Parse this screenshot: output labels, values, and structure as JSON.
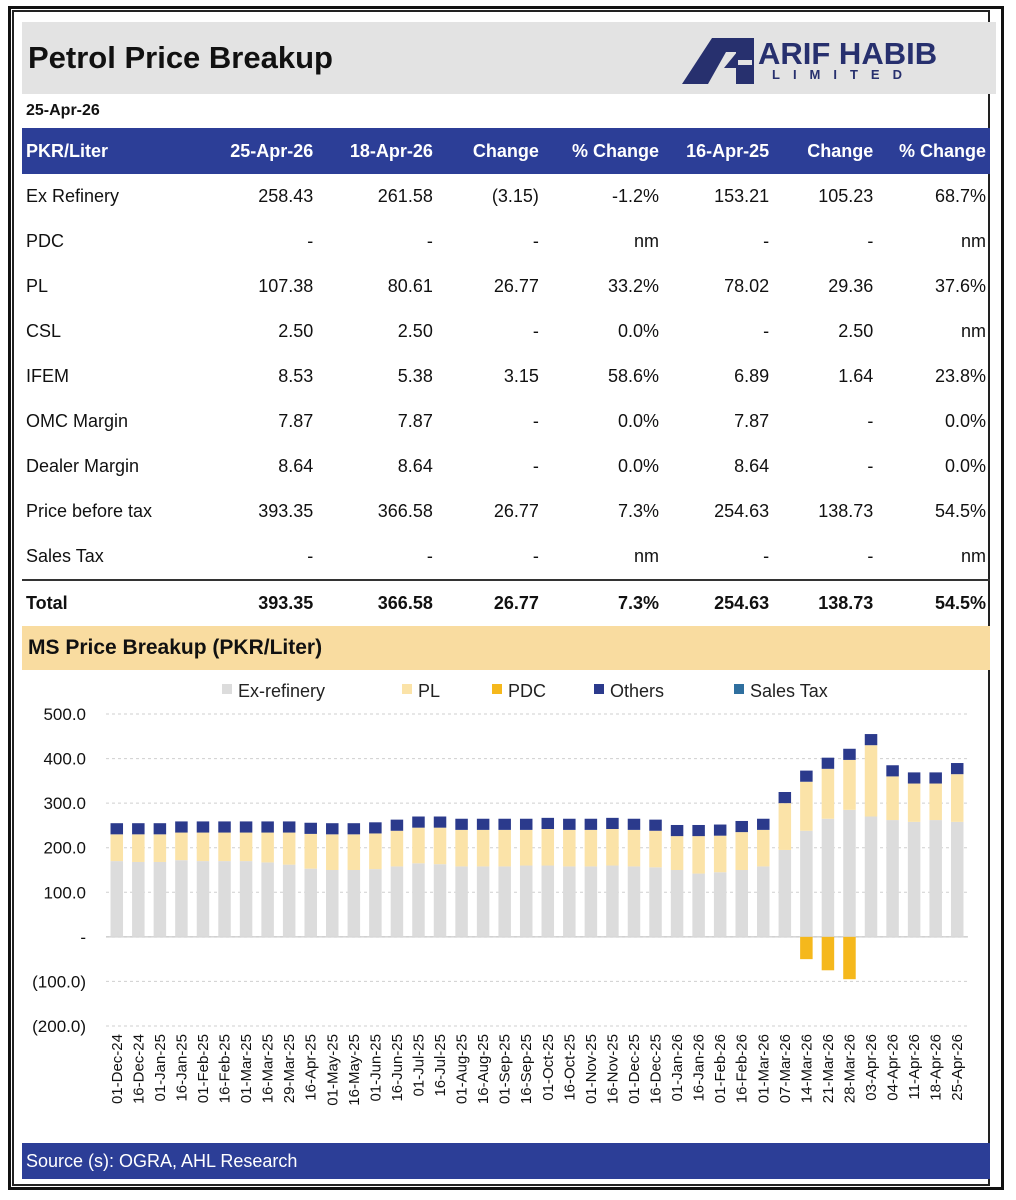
{
  "header": {
    "title": "Petrol Price Breakup",
    "logo_main": "ARIF HABIB",
    "logo_sub": "LIMITED"
  },
  "date": "25-Apr-26",
  "table": {
    "columns": [
      "PKR/Liter",
      "25-Apr-26",
      "18-Apr-26",
      "Change",
      "% Change",
      "16-Apr-25",
      "Change",
      "% Change"
    ],
    "rows": [
      [
        "Ex Refinery",
        "258.43",
        "261.58",
        "(3.15)",
        "-1.2%",
        "153.21",
        "105.23",
        "68.7%"
      ],
      [
        "PDC",
        "-",
        "-",
        "-",
        "nm",
        "-",
        "-",
        "nm"
      ],
      [
        "PL",
        "107.38",
        "80.61",
        "26.77",
        "33.2%",
        "78.02",
        "29.36",
        "37.6%"
      ],
      [
        "CSL",
        "2.50",
        "2.50",
        "-",
        "0.0%",
        "-",
        "2.50",
        "nm"
      ],
      [
        "IFEM",
        "8.53",
        "5.38",
        "3.15",
        "58.6%",
        "6.89",
        "1.64",
        "23.8%"
      ],
      [
        "OMC Margin",
        "7.87",
        "7.87",
        "-",
        "0.0%",
        "7.87",
        "-",
        "0.0%"
      ],
      [
        "Dealer Margin",
        "8.64",
        "8.64",
        "-",
        "0.0%",
        "8.64",
        "-",
        "0.0%"
      ],
      [
        "Price before tax",
        "393.35",
        "366.58",
        "26.77",
        "7.3%",
        "254.63",
        "138.73",
        "54.5%"
      ],
      [
        "Sales Tax",
        "-",
        "-",
        "-",
        "nm",
        "-",
        "-",
        "nm"
      ]
    ],
    "total": [
      "Total",
      "393.35",
      "366.58",
      "26.77",
      "7.3%",
      "254.63",
      "138.73",
      "54.5%"
    ]
  },
  "section_title": "MS Price Breakup (PKR/Liter)",
  "footer": {
    "source": "Source (s): OGRA, AHL Research"
  },
  "colors": {
    "header_blue": "#2c3e97",
    "section_bg": "#f9dca0",
    "ex_refinery": "#dcdcdc",
    "pl": "#fbe3a8",
    "pdc": "#f5b81c",
    "others": "#2b3a8c",
    "sales_tax": "#2f6f9f"
  },
  "chart_data": {
    "type": "bar",
    "stacked": true,
    "title": "MS Price Breakup (PKR/Liter)",
    "xlabel": "",
    "ylabel": "",
    "ylim": [
      -200,
      500
    ],
    "yticks": [
      500,
      400,
      300,
      200,
      100,
      0,
      -100,
      -200
    ],
    "ytick_labels": [
      "500.0",
      "400.0",
      "300.0",
      "200.0",
      "100.0",
      "-",
      "(100.0)",
      "(200.0)"
    ],
    "legend": [
      "Ex-refinery",
      "PL",
      "PDC",
      "Others",
      "Sales Tax"
    ],
    "legend_position": "top",
    "grid": true,
    "categories": [
      "01-Dec-24",
      "16-Dec-24",
      "01-Jan-25",
      "16-Jan-25",
      "01-Feb-25",
      "16-Feb-25",
      "01-Mar-25",
      "16-Mar-25",
      "29-Mar-25",
      "16-Apr-25",
      "01-May-25",
      "16-May-25",
      "01-Jun-25",
      "16-Jun-25",
      "01-Jul-25",
      "16-Jul-25",
      "01-Aug-25",
      "16-Aug-25",
      "01-Sep-25",
      "16-Sep-25",
      "01-Oct-25",
      "16-Oct-25",
      "01-Nov-25",
      "16-Nov-25",
      "01-Dec-25",
      "16-Dec-25",
      "01-Jan-26",
      "16-Jan-26",
      "01-Feb-26",
      "16-Feb-26",
      "01-Mar-26",
      "07-Mar-26",
      "14-Mar-26",
      "21-Mar-26",
      "28-Mar-26",
      "03-Apr-26",
      "04-Apr-26",
      "11-Apr-26",
      "18-Apr-26",
      "25-Apr-26"
    ],
    "series": [
      {
        "name": "Ex-refinery",
        "values": [
          170,
          168,
          168,
          172,
          170,
          170,
          170,
          167,
          162,
          153,
          150,
          150,
          152,
          158,
          165,
          163,
          158,
          158,
          158,
          160,
          160,
          158,
          158,
          160,
          158,
          156,
          150,
          142,
          145,
          150,
          158,
          195,
          238,
          265,
          285,
          270,
          262,
          258,
          262,
          258
        ]
      },
      {
        "name": "PL",
        "values": [
          60,
          62,
          62,
          62,
          64,
          64,
          64,
          67,
          72,
          78,
          80,
          80,
          80,
          80,
          80,
          82,
          82,
          82,
          82,
          80,
          82,
          82,
          82,
          82,
          82,
          82,
          76,
          84,
          82,
          85,
          82,
          105,
          110,
          112,
          112,
          160,
          98,
          86,
          82,
          107
        ]
      },
      {
        "name": "PDC",
        "values": [
          0,
          0,
          0,
          0,
          0,
          0,
          0,
          0,
          0,
          0,
          0,
          0,
          0,
          0,
          0,
          0,
          0,
          0,
          0,
          0,
          0,
          0,
          0,
          0,
          0,
          0,
          0,
          0,
          0,
          0,
          0,
          0,
          -50,
          -75,
          -95,
          0,
          0,
          0,
          0,
          0
        ]
      },
      {
        "name": "Others",
        "values": [
          25,
          25,
          25,
          25,
          25,
          25,
          25,
          25,
          25,
          25,
          25,
          25,
          25,
          25,
          25,
          25,
          25,
          25,
          25,
          25,
          25,
          25,
          25,
          25,
          25,
          25,
          25,
          25,
          25,
          25,
          25,
          25,
          25,
          25,
          25,
          25,
          25,
          25,
          25,
          25
        ]
      },
      {
        "name": "Sales Tax",
        "values": [
          0,
          0,
          0,
          0,
          0,
          0,
          0,
          0,
          0,
          0,
          0,
          0,
          0,
          0,
          0,
          0,
          0,
          0,
          0,
          0,
          0,
          0,
          0,
          0,
          0,
          0,
          0,
          0,
          0,
          0,
          0,
          0,
          0,
          0,
          0,
          0,
          0,
          0,
          0,
          0
        ]
      }
    ]
  }
}
